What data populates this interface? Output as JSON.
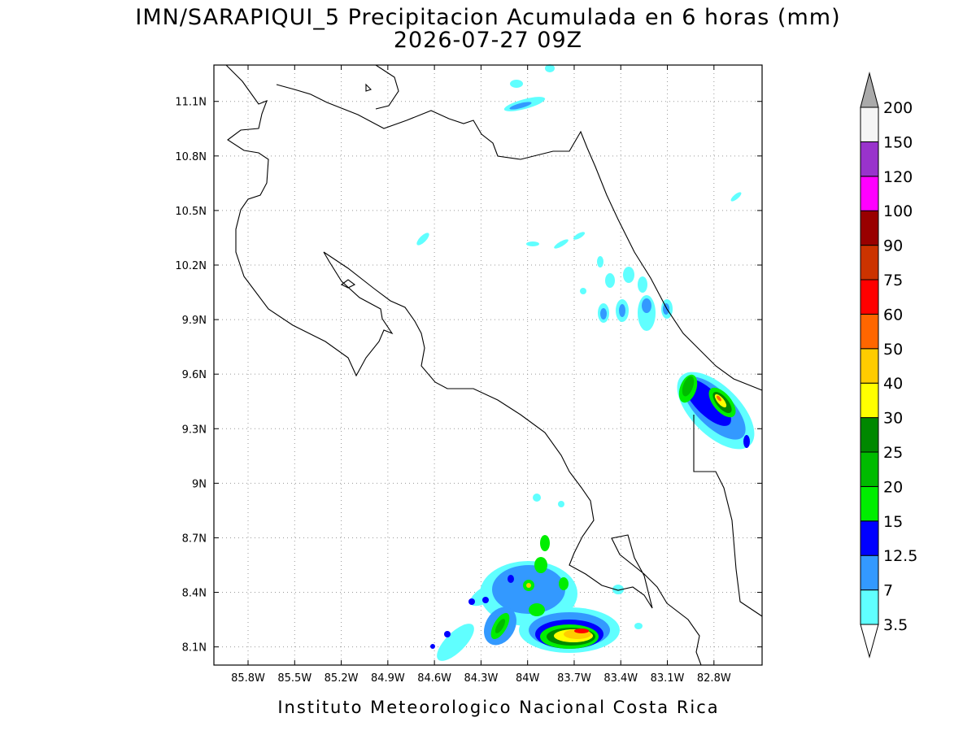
{
  "map": {
    "title": "IMN/SARAPIQUI_5 Precipitacion Acumulada en 6 horas (mm)",
    "subtitle": "2026-07-27 09Z",
    "footer": "Instituto Meteorologico Nacional Costa Rica",
    "lonlim": [
      -86.02,
      -82.49
    ],
    "latlim": [
      8.0,
      11.3
    ],
    "lon_ticks": [
      {
        "value": -85.8,
        "label": "85.8W"
      },
      {
        "value": -85.5,
        "label": "85.5W"
      },
      {
        "value": -85.2,
        "label": "85.2W"
      },
      {
        "value": -84.9,
        "label": "84.9W"
      },
      {
        "value": -84.6,
        "label": "84.6W"
      },
      {
        "value": -84.3,
        "label": "84.3W"
      },
      {
        "value": -84.0,
        "label": "84W"
      },
      {
        "value": -83.7,
        "label": "83.7W"
      },
      {
        "value": -83.4,
        "label": "83.4W"
      },
      {
        "value": -83.1,
        "label": "83.1W"
      },
      {
        "value": -82.8,
        "label": "82.8W"
      }
    ],
    "lat_ticks": [
      {
        "value": 8.1,
        "label": "8.1N"
      },
      {
        "value": 8.4,
        "label": "8.4N"
      },
      {
        "value": 8.7,
        "label": "8.7N"
      },
      {
        "value": 9.0,
        "label": "9N"
      },
      {
        "value": 9.3,
        "label": "9.3N"
      },
      {
        "value": 9.6,
        "label": "9.6N"
      },
      {
        "value": 9.9,
        "label": "9.9N"
      },
      {
        "value": 10.2,
        "label": "10.2N"
      },
      {
        "value": 10.5,
        "label": "10.5N"
      },
      {
        "value": 10.8,
        "label": "10.8N"
      },
      {
        "value": 11.1,
        "label": "11.1N"
      }
    ],
    "grid": true,
    "colorbar": {
      "levels": [
        3.5,
        7,
        12.5,
        15,
        20,
        25,
        30,
        40,
        50,
        60,
        75,
        90,
        100,
        120,
        150,
        200
      ],
      "colors": [
        "#60ffff",
        "#3399ff",
        "#0000ff",
        "#00ee00",
        "#00bb00",
        "#008800",
        "#ffff00",
        "#ffcc00",
        "#ff6600",
        "#ff0000",
        "#cc3300",
        "#990000",
        "#ff00ff",
        "#9933cc",
        "#f5f5f5"
      ],
      "under_color": "#ffffff",
      "over_color": "#aaaaaa"
    }
  }
}
